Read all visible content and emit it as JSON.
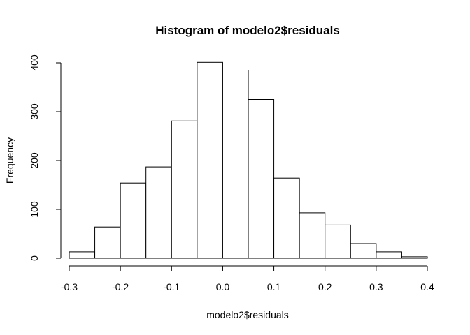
{
  "chart_data": {
    "type": "bar",
    "title": "Histogram of modelo2$residuals",
    "xlabel": "modelo2$residuals",
    "ylabel": "Frequency",
    "bin_edges": [
      -0.3,
      -0.25,
      -0.2,
      -0.15,
      -0.1,
      -0.05,
      0.0,
      0.05,
      0.1,
      0.15,
      0.2,
      0.25,
      0.3,
      0.35,
      0.4
    ],
    "values": [
      13,
      64,
      154,
      187,
      281,
      401,
      385,
      325,
      164,
      93,
      68,
      30,
      13,
      3
    ],
    "xlim": [
      -0.3,
      0.4
    ],
    "ylim": [
      0,
      400
    ],
    "x_ticks": [
      "-0.3",
      "-0.2",
      "-0.1",
      "0.0",
      "0.1",
      "0.2",
      "0.3",
      "0.4"
    ],
    "x_tick_values": [
      -0.3,
      -0.2,
      -0.1,
      0.0,
      0.1,
      0.2,
      0.3,
      0.4
    ],
    "y_ticks": [
      "0",
      "100",
      "200",
      "300",
      "400"
    ],
    "y_tick_values": [
      0,
      100,
      200,
      300,
      400
    ],
    "grid": false,
    "colors": {
      "bar_fill": "#ffffff",
      "bar_stroke": "#000000"
    }
  }
}
